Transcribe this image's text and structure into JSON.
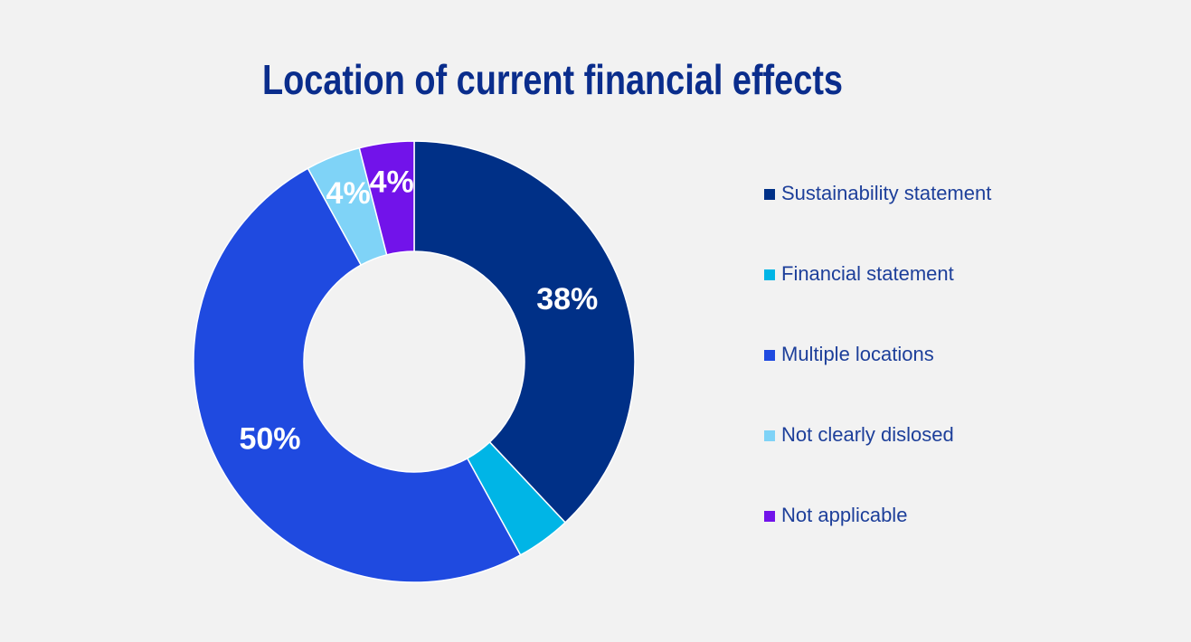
{
  "chart_data": {
    "type": "donut",
    "title": "Location of current financial effects",
    "categories": [
      "Sustainability statement",
      "Financial statement",
      "Multiple locations",
      "Not clearly dislosed",
      "Not applicable"
    ],
    "values": [
      38,
      4,
      50,
      4,
      4
    ],
    "value_labels": [
      "38%",
      null,
      "50%",
      "4%",
      "4%"
    ],
    "colors": [
      "#003087",
      "#00b5e6",
      "#1f4ae0",
      "#7fd3f7",
      "#7213ea"
    ],
    "legend": "right"
  }
}
